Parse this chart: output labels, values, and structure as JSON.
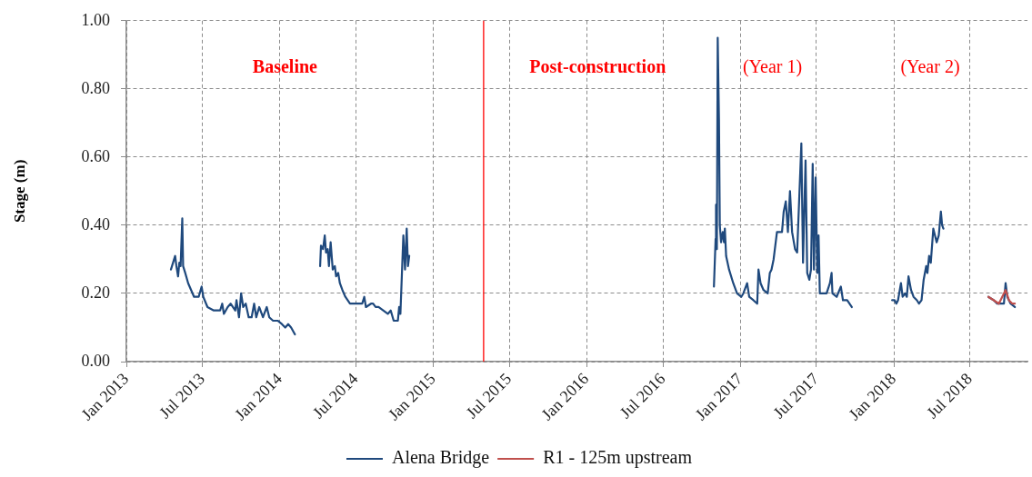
{
  "chart_data": {
    "type": "line",
    "ylabel": "Stage (m)",
    "annotations": [
      "Baseline",
      "Post-construction",
      "(Year 1)",
      "(Year 2)"
    ],
    "xlim": [
      "2013-01-01",
      "2018-11-15"
    ],
    "xticks": [
      {
        "value": "2013-01",
        "label": "Jan 2013"
      },
      {
        "value": "2013-07",
        "label": "Jul 2013"
      },
      {
        "value": "2014-01",
        "label": "Jan 2014"
      },
      {
        "value": "2014-07",
        "label": "Jul 2014"
      },
      {
        "value": "2015-01",
        "label": "Jan 2015"
      },
      {
        "value": "2015-07",
        "label": "Jul 2015"
      },
      {
        "value": "2016-01",
        "label": "Jan 2016"
      },
      {
        "value": "2016-07",
        "label": "Jul 2016"
      },
      {
        "value": "2017-01",
        "label": "Jan 2017"
      },
      {
        "value": "2017-07",
        "label": "Jul 2017"
      },
      {
        "value": "2018-01",
        "label": "Jan 2018"
      },
      {
        "value": "2018-07",
        "label": "Jul 2018"
      }
    ],
    "ylim": [
      0,
      1
    ],
    "yticks": [
      {
        "value": 0,
        "label": "0.00"
      },
      {
        "value": 0.2,
        "label": "0.20"
      },
      {
        "value": 0.4,
        "label": "0.40"
      },
      {
        "value": 0.6,
        "label": "0.60"
      },
      {
        "value": 0.8,
        "label": "0.80"
      },
      {
        "value": 1,
        "label": "1.00"
      }
    ],
    "grid": true,
    "legend": "bottom",
    "marker": "none",
    "ref_lines": [
      {
        "axis": "x",
        "value": "2015-05-01",
        "color": "#ff0000"
      }
    ],
    "series": [
      {
        "name": "Alena Bridge",
        "color": "#1f497d",
        "x": [
          "2013-04-17",
          "2013-04-22",
          "2013-04-27",
          "2013-04-30",
          "2013-05-04",
          "2013-05-07",
          "2013-05-10",
          "2013-05-14",
          "2013-05-16",
          "2013-05-21",
          "2013-05-28",
          "2013-06-04",
          "2013-06-11",
          "2013-06-22",
          "2013-06-29",
          "2013-07-03",
          "2013-07-13",
          "2013-07-28",
          "2013-08-12",
          "2013-08-17",
          "2013-08-21",
          "2013-08-30",
          "2013-09-06",
          "2013-09-17",
          "2013-09-20",
          "2013-09-26",
          "2013-10-01",
          "2013-10-06",
          "2013-10-12",
          "2013-10-19",
          "2013-10-26",
          "2013-11-01",
          "2013-11-06",
          "2013-11-13",
          "2013-11-22",
          "2013-12-01",
          "2013-12-07",
          "2013-12-16",
          "2013-12-27",
          "2014-01-06",
          "2014-01-14",
          "2014-01-21",
          "2014-01-28",
          "2014-02-06",
          "2014-03-01",
          "2014-04-07",
          "2014-04-09",
          "2014-04-14",
          "2014-04-18",
          "2014-04-21",
          "2014-04-25",
          "2014-04-28",
          "2014-05-02",
          "2014-05-07",
          "2014-05-12",
          "2014-05-15",
          "2014-05-20",
          "2014-05-24",
          "2014-05-30",
          "2014-06-06",
          "2014-06-17",
          "2014-07-01",
          "2014-07-16",
          "2014-07-21",
          "2014-07-25",
          "2014-08-06",
          "2014-08-11",
          "2014-08-17",
          "2014-08-24",
          "2014-09-04",
          "2014-09-15",
          "2014-09-22",
          "2014-09-29",
          "2014-10-04",
          "2014-10-09",
          "2014-10-12",
          "2014-10-15",
          "2014-10-22",
          "2014-10-26",
          "2014-10-30",
          "2014-11-02",
          "2014-11-05",
          "2015-12-01",
          "2016-10-30",
          "2016-11-03",
          "2016-11-04",
          "2016-11-06",
          "2016-11-08",
          "2016-11-11",
          "2016-11-13",
          "2016-11-16",
          "2016-11-20",
          "2016-11-23",
          "2016-11-25",
          "2016-11-28",
          "2016-12-05",
          "2016-12-15",
          "2016-12-24",
          "2017-01-03",
          "2017-01-08",
          "2017-01-17",
          "2017-01-22",
          "2017-02-01",
          "2017-02-10",
          "2017-02-13",
          "2017-02-18",
          "2017-02-25",
          "2017-03-07",
          "2017-03-12",
          "2017-03-16",
          "2017-03-21",
          "2017-03-29",
          "2017-04-10",
          "2017-04-14",
          "2017-04-19",
          "2017-04-24",
          "2017-04-29",
          "2017-05-04",
          "2017-05-11",
          "2017-05-16",
          "2017-05-26",
          "2017-05-30",
          "2017-06-05",
          "2017-06-09",
          "2017-06-14",
          "2017-06-18",
          "2017-06-22",
          "2017-06-25",
          "2017-06-29",
          "2017-07-03",
          "2017-07-06",
          "2017-07-09",
          "2017-07-25",
          "2017-08-02",
          "2017-08-06",
          "2017-08-08",
          "2017-08-18",
          "2017-08-28",
          "2017-09-02",
          "2017-09-12",
          "2017-09-23",
          "2017-11-01",
          "2017-12-28",
          "2018-01-03",
          "2018-01-07",
          "2018-01-11",
          "2018-01-18",
          "2018-01-22",
          "2018-01-28",
          "2018-02-01",
          "2018-02-05",
          "2018-02-11",
          "2018-02-17",
          "2018-02-25",
          "2018-03-02",
          "2018-03-08",
          "2018-03-13",
          "2018-03-19",
          "2018-03-22",
          "2018-03-26",
          "2018-03-30",
          "2018-04-05",
          "2018-04-07",
          "2018-04-13",
          "2018-04-18",
          "2018-04-23",
          "2018-04-26",
          "2018-04-29",
          "2018-06-15",
          "2018-08-14",
          "2018-08-27",
          "2018-09-04",
          "2018-09-12",
          "2018-09-20",
          "2018-09-24",
          "2018-09-28",
          "2018-10-02",
          "2018-10-06",
          "2018-10-16"
        ],
        "values": [
          0.27,
          0.29,
          0.31,
          0.28,
          0.25,
          0.29,
          0.28,
          0.42,
          0.28,
          0.26,
          0.23,
          0.21,
          0.19,
          0.19,
          0.22,
          0.19,
          0.16,
          0.15,
          0.15,
          0.17,
          0.14,
          0.16,
          0.17,
          0.15,
          0.18,
          0.13,
          0.2,
          0.16,
          0.17,
          0.13,
          0.13,
          0.17,
          0.13,
          0.16,
          0.13,
          0.16,
          0.13,
          0.12,
          0.12,
          0.11,
          0.1,
          0.11,
          0.1,
          0.08,
          null,
          0.28,
          0.34,
          0.33,
          0.37,
          0.32,
          0.33,
          0.28,
          0.35,
          0.27,
          0.28,
          0.25,
          0.26,
          0.23,
          0.21,
          0.19,
          0.17,
          0.17,
          0.17,
          0.19,
          0.16,
          0.17,
          0.17,
          0.16,
          0.16,
          0.15,
          0.14,
          0.15,
          0.12,
          0.12,
          0.12,
          0.16,
          0.14,
          0.37,
          0.27,
          0.39,
          0.28,
          0.31,
          null,
          0.22,
          0.36,
          0.46,
          0.33,
          0.95,
          0.71,
          0.4,
          0.35,
          0.38,
          0.35,
          0.39,
          0.31,
          0.27,
          0.23,
          0.2,
          0.19,
          0.2,
          0.23,
          0.19,
          0.18,
          0.17,
          0.27,
          0.23,
          0.21,
          0.2,
          0.26,
          0.27,
          0.3,
          0.38,
          0.38,
          0.44,
          0.47,
          0.38,
          0.5,
          0.38,
          0.33,
          0.32,
          0.64,
          0.29,
          0.59,
          0.26,
          0.24,
          0.27,
          0.58,
          0.27,
          0.54,
          0.26,
          0.37,
          0.2,
          0.2,
          0.23,
          0.26,
          0.2,
          0.19,
          0.22,
          0.18,
          0.18,
          0.16,
          null,
          0.18,
          0.18,
          0.17,
          0.18,
          0.23,
          0.19,
          0.2,
          0.19,
          0.25,
          0.21,
          0.19,
          0.18,
          0.17,
          0.18,
          0.24,
          0.28,
          0.26,
          0.31,
          0.29,
          0.39,
          0.38,
          0.35,
          0.37,
          0.44,
          0.4,
          0.39,
          null,
          0.19,
          0.18,
          0.17,
          0.17,
          0.17,
          0.23,
          0.19,
          0.18,
          0.17,
          0.16
        ]
      },
      {
        "name": "R1 - 125m upstream",
        "color": "#c0504d",
        "x": [
          "2018-08-14",
          "2018-08-27",
          "2018-09-08",
          "2018-09-16",
          "2018-09-24",
          "2018-10-02",
          "2018-10-10",
          "2018-10-16"
        ],
        "values": [
          0.19,
          0.18,
          0.17,
          0.19,
          0.21,
          0.18,
          0.17,
          0.17
        ]
      }
    ]
  }
}
